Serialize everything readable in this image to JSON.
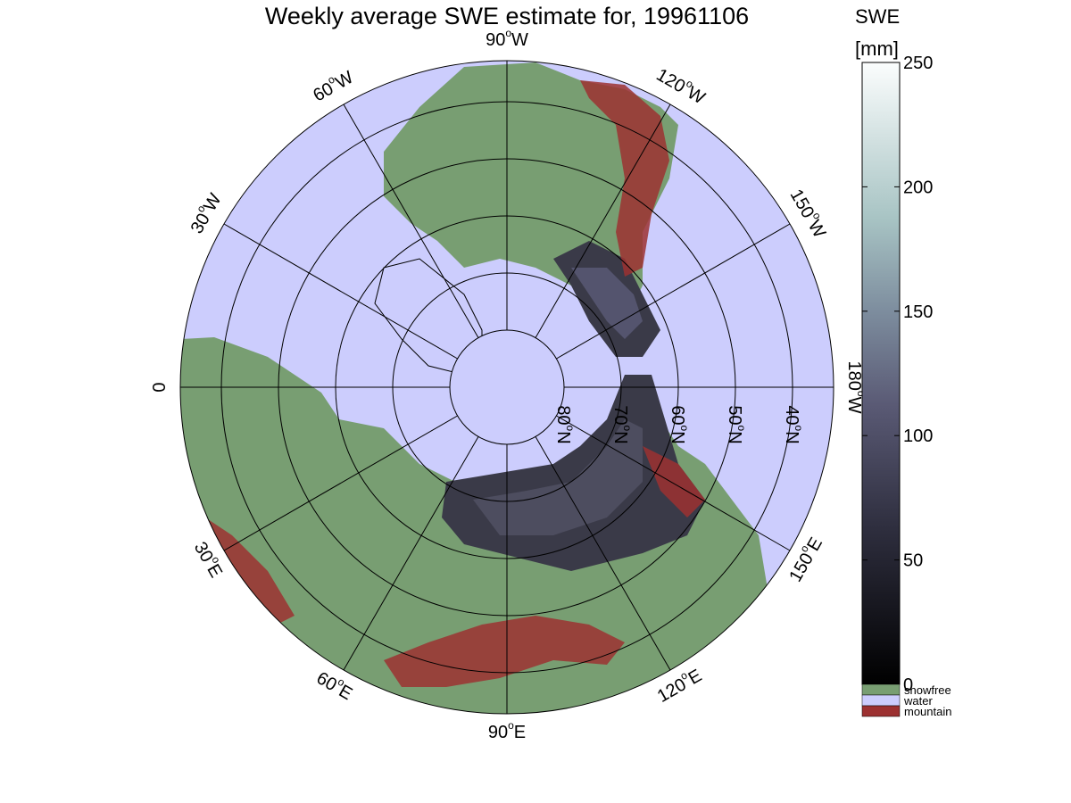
{
  "title": "Weekly average SWE estimate for, 19961106",
  "colorbar": {
    "label_line1": "SWE",
    "label_line2": "[mm]",
    "ticks": [
      "0",
      "50",
      "100",
      "150",
      "200",
      "250"
    ],
    "tick_values": [
      0,
      50,
      100,
      150,
      200,
      250
    ],
    "range": [
      0,
      250
    ],
    "categories": [
      {
        "label": "snowfree",
        "color": "#789e72"
      },
      {
        "label": "water",
        "color": "#cccdfd"
      },
      {
        "label": "mountain",
        "color": "#9c3131"
      }
    ]
  },
  "map": {
    "projection": "polar-stereographic-north",
    "colors": {
      "water": "#cccdfd",
      "snowfree": "#789e72",
      "mountain": "#9c3131",
      "snow_low": "#18181f",
      "snow_mid": "#3c3c4c",
      "snow_high": "#7a7a96"
    },
    "longitude_labels": [
      {
        "deg": "0",
        "hemi": ""
      },
      {
        "deg": "30",
        "hemi": "W"
      },
      {
        "deg": "60",
        "hemi": "W"
      },
      {
        "deg": "90",
        "hemi": "W"
      },
      {
        "deg": "120",
        "hemi": "W"
      },
      {
        "deg": "150",
        "hemi": "W"
      },
      {
        "deg": "180",
        "hemi": "W"
      },
      {
        "deg": "150",
        "hemi": "E"
      },
      {
        "deg": "120",
        "hemi": "E"
      },
      {
        "deg": "90",
        "hemi": "E"
      },
      {
        "deg": "60",
        "hemi": "E"
      },
      {
        "deg": "30",
        "hemi": "E"
      }
    ],
    "latitude_labels": [
      "80",
      "70",
      "60",
      "50",
      "40"
    ],
    "latitude_suffix": "N",
    "degree_symbol": "o"
  }
}
